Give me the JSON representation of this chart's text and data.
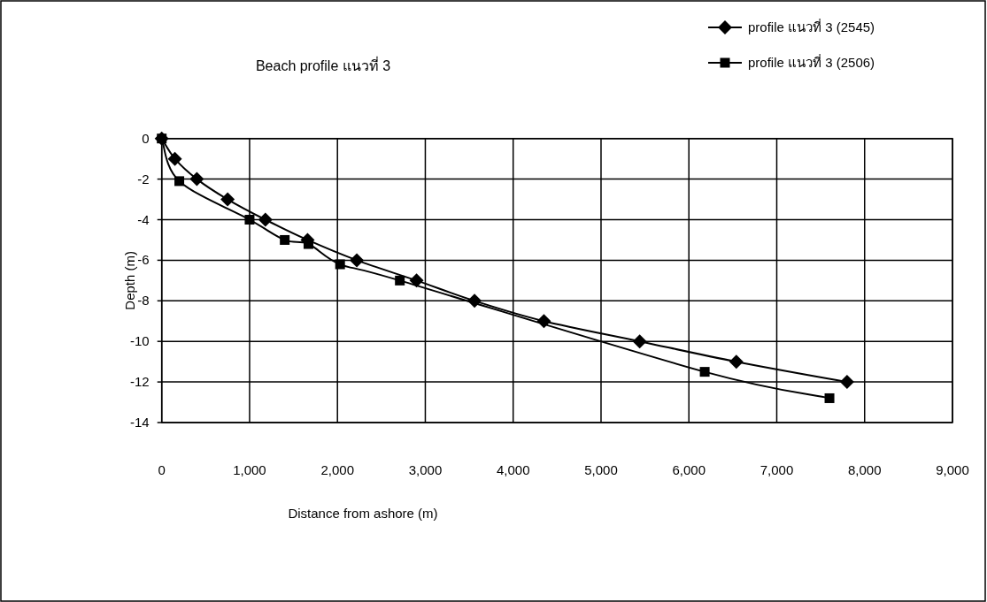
{
  "chart_data": {
    "type": "line",
    "title": "Beach profile แนวที่ 3",
    "xlabel": "Distance from ashore (m)",
    "ylabel": "Depth (m)",
    "xlim": [
      0,
      9000
    ],
    "ylim": [
      -14,
      0
    ],
    "xticks": [
      0,
      {
        "value": 1000,
        "label": "1,000"
      },
      {
        "value": 2000,
        "label": "2,000"
      },
      {
        "value": 3000,
        "label": "3,000"
      },
      {
        "value": 4000,
        "label": "4,000"
      },
      {
        "value": 5000,
        "label": "5,000"
      },
      {
        "value": 6000,
        "label": "6,000"
      },
      {
        "value": 7000,
        "label": "7,000"
      },
      {
        "value": 8000,
        "label": "8,000"
      },
      {
        "value": 9000,
        "label": "9,000"
      }
    ],
    "yticks": [
      0,
      -2,
      -4,
      -6,
      -8,
      -10,
      -12,
      -14
    ],
    "grid": true,
    "legend": "top right",
    "series": [
      {
        "name": "profile แนวที่ 3 (2545)",
        "color": "#000000",
        "marker": "diamond",
        "x": [
          0,
          150,
          400,
          750,
          1180,
          1660,
          2220,
          2900,
          3560,
          4350,
          5440,
          6540,
          7800
        ],
        "values": [
          0,
          -1,
          -2,
          -3,
          -4,
          -5,
          -6,
          -7,
          -8,
          -9,
          -10,
          -11,
          -12
        ]
      },
      {
        "name": "profile แนวที่ 3 (2506)",
        "color": "#000000",
        "marker": "square",
        "x": [
          0,
          200,
          1000,
          1400,
          1670,
          2030,
          2710,
          6180,
          7600
        ],
        "values": [
          0,
          -2.1,
          -4,
          -5,
          -5.2,
          -6.2,
          -7,
          -11.5,
          -12.8
        ]
      }
    ]
  }
}
